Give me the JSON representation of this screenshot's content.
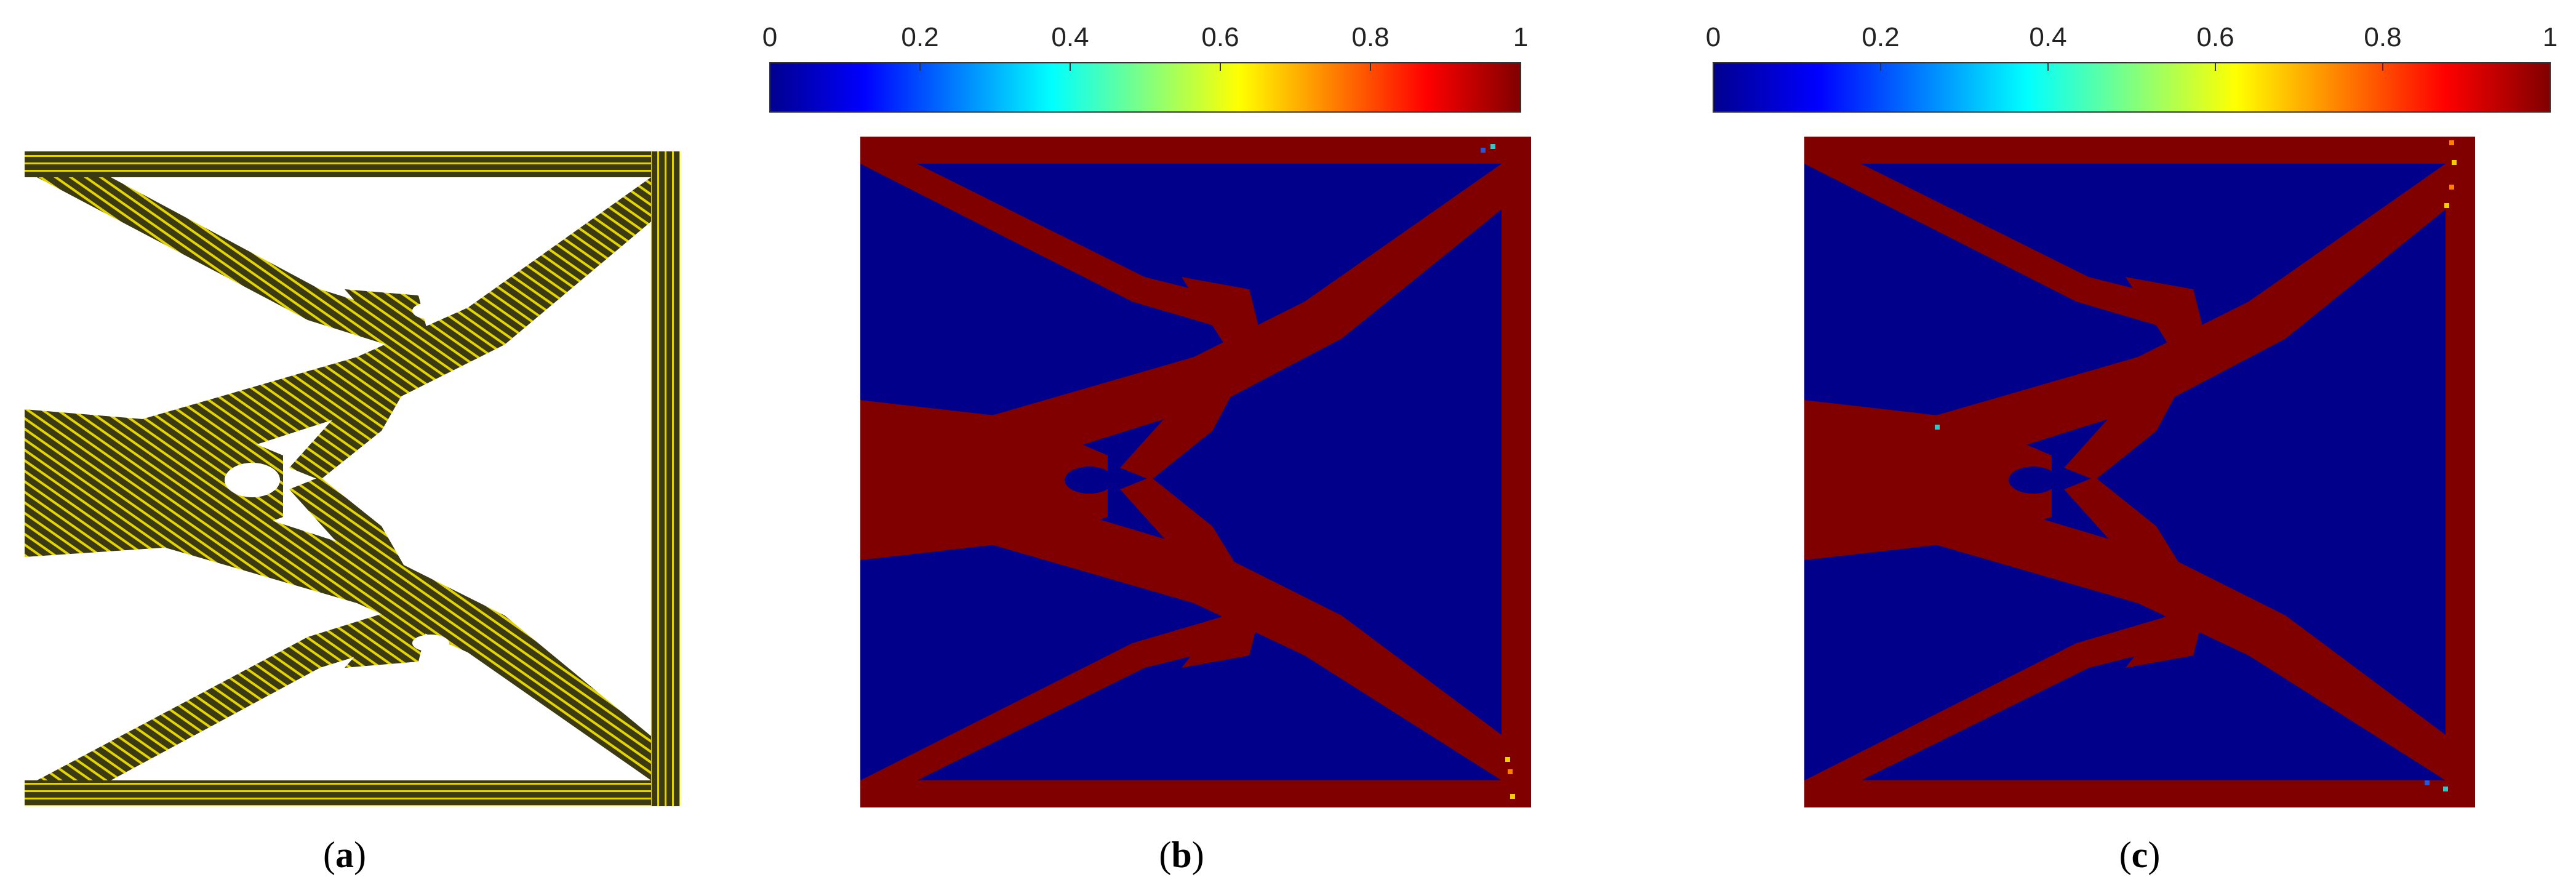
{
  "colors": {
    "solid": "#800000",
    "void": "#00008b",
    "lattice_fill": "#3b3a12",
    "lattice_stripe": "#e3d400"
  },
  "panels": {
    "a": {
      "caption_open": "(",
      "caption_letter": "a",
      "caption_close": ")"
    },
    "b": {
      "caption_open": "(",
      "caption_letter": "b",
      "caption_close": ")",
      "colorbar_ticks": [
        "0",
        "0.2",
        "0.4",
        "0.6",
        "0.8",
        "1"
      ]
    },
    "c": {
      "caption_open": "(",
      "caption_letter": "c",
      "caption_close": ")",
      "colorbar_ticks": [
        "0",
        "0.2",
        "0.4",
        "0.6",
        "0.8",
        "1"
      ]
    }
  },
  "colormap": "jet",
  "colorbar_range": [
    0,
    1
  ]
}
